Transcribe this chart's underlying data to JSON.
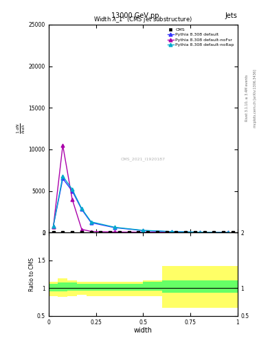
{
  "title_top": "13000 GeV pp",
  "title_right": "Jets",
  "plot_title": "Width $\\lambda\\_1^1$ (CMS jet substructure)",
  "watermark": "CMS_2021_I1920187",
  "right_label_top": "Rivet 3.1.10, ≥ 3.4M events",
  "right_label_bot": "mcplots.cern.ch [arXiv:1306.3436]",
  "ylabel_main": "$\\frac{1}{N}\\frac{dN}{d\\lambda}$",
  "ylabel_ratio": "Ratio to CMS",
  "xlabel": "width",
  "xlim": [
    0,
    1
  ],
  "ylim_main": [
    0,
    25000
  ],
  "ylim_ratio": [
    0.5,
    2
  ],
  "cms_x": [
    0.025,
    0.075,
    0.125,
    0.175,
    0.225,
    0.275,
    0.325,
    0.375,
    0.425,
    0.475,
    0.525,
    0.575,
    0.625,
    0.675,
    0.725,
    0.775,
    0.825,
    0.875,
    0.925,
    0.975
  ],
  "cms_y": [
    30,
    30,
    30,
    30,
    30,
    30,
    30,
    30,
    30,
    30,
    30,
    30,
    30,
    30,
    30,
    30,
    30,
    30,
    30,
    30
  ],
  "pythia_default_x": [
    0.025,
    0.075,
    0.125,
    0.175,
    0.225,
    0.35,
    0.5,
    0.65,
    0.8,
    0.95
  ],
  "pythia_default_y": [
    800,
    6500,
    5000,
    2800,
    1200,
    600,
    250,
    120,
    50,
    20
  ],
  "pythia_noFsr_x": [
    0.025,
    0.075,
    0.125,
    0.175,
    0.225,
    0.35,
    0.5,
    0.65,
    0.8,
    0.95
  ],
  "pythia_noFsr_y": [
    700,
    10500,
    4000,
    400,
    150,
    80,
    60,
    40,
    20,
    10
  ],
  "pythia_noRap_x": [
    0.025,
    0.075,
    0.125,
    0.175,
    0.225,
    0.35,
    0.5,
    0.65,
    0.8,
    0.95
  ],
  "pythia_noRap_y": [
    800,
    6800,
    5200,
    2900,
    1300,
    650,
    280,
    130,
    60,
    25
  ],
  "color_default": "#3333FF",
  "color_noFsr": "#AA00AA",
  "color_noRap": "#00AACC",
  "color_cms": "#000000",
  "ratio_x_edges": [
    0.0,
    0.05,
    0.1,
    0.15,
    0.2,
    0.3,
    0.4,
    0.5,
    0.6,
    0.7,
    0.8,
    0.9,
    1.0
  ],
  "ratio_green_lo": [
    0.94,
    0.94,
    0.95,
    0.96,
    0.95,
    0.95,
    0.95,
    0.95,
    0.92,
    0.92,
    0.92,
    0.92
  ],
  "ratio_green_hi": [
    1.08,
    1.1,
    1.1,
    1.08,
    1.08,
    1.08,
    1.08,
    1.12,
    1.14,
    1.14,
    1.14,
    1.14
  ],
  "ratio_yellow_lo": [
    0.86,
    0.84,
    0.86,
    0.88,
    0.86,
    0.86,
    0.86,
    0.86,
    0.65,
    0.65,
    0.65,
    0.65
  ],
  "ratio_yellow_hi": [
    1.12,
    1.18,
    1.14,
    1.12,
    1.12,
    1.12,
    1.12,
    1.14,
    1.4,
    1.4,
    1.4,
    1.4
  ],
  "yticks_main": [
    0,
    5000,
    10000,
    15000,
    20000,
    25000
  ],
  "ytick_labels_main": [
    "0",
    "5000",
    "10000",
    "15000",
    "20000",
    "25000"
  ],
  "yticks_ratio": [
    0.5,
    1.0,
    1.5,
    2.0
  ],
  "ytick_labels_ratio": [
    "0.5",
    "1",
    "1.5",
    "2"
  ]
}
